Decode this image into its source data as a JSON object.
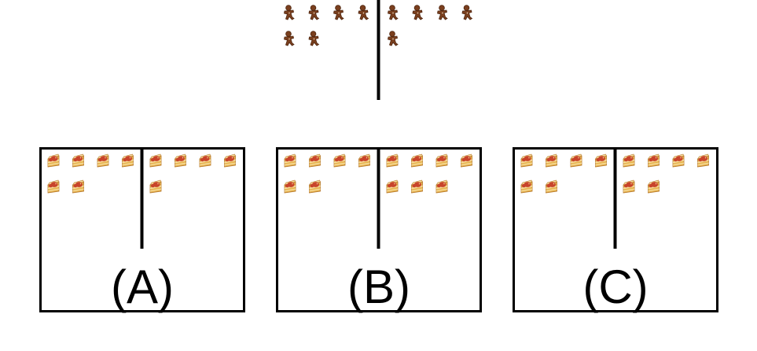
{
  "colors": {
    "line": "#000000",
    "background": "#ffffff",
    "gingerbread_body": "#7a3f1e",
    "gingerbread_outline": "#4e2610",
    "cake_sponge": "#e6b24e",
    "cake_cream": "#f6dc9a",
    "cake_jam": "#c8442b",
    "cake_outline": "#b5772c"
  },
  "icons": {
    "top_item": "gingerbread-man-icon",
    "option_item": "strawberry-cake-slice-icon"
  },
  "top_group": {
    "left_count": 6,
    "right_count": 5
  },
  "options": [
    {
      "label": "(A)",
      "left_count": 6,
      "right_count": 5
    },
    {
      "label": "(B)",
      "left_count": 6,
      "right_count": 7
    },
    {
      "label": "(C)",
      "left_count": 6,
      "right_count": 6
    }
  ]
}
